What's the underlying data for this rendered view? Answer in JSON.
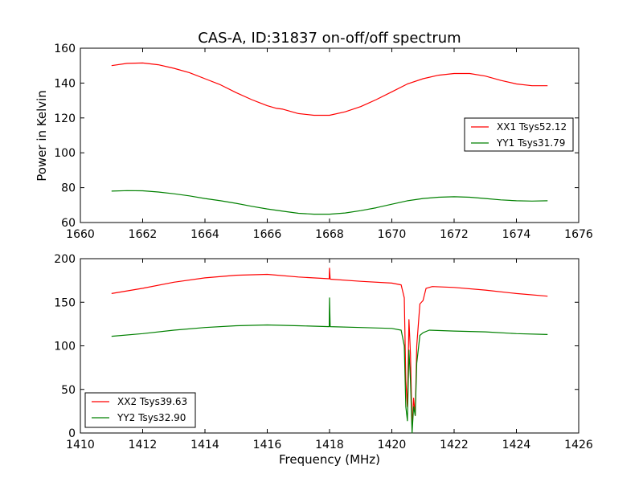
{
  "chart_data": [
    {
      "type": "line",
      "title": "CAS-A, ID:31837 on-off/off spectrum",
      "xlabel": "",
      "ylabel": "Power in Kelvin",
      "xlim": [
        1660,
        1676
      ],
      "ylim": [
        60,
        160
      ],
      "xticks": [
        1660,
        1662,
        1664,
        1666,
        1668,
        1670,
        1672,
        1674,
        1676
      ],
      "yticks": [
        60,
        80,
        100,
        120,
        140,
        160
      ],
      "legend_position": "center-right",
      "series": [
        {
          "name": "XX1 Tsys52.12",
          "color": "#ff0000",
          "points": [
            [
              1661.0,
              150
            ],
            [
              1661.5,
              151.3
            ],
            [
              1662.0,
              151.5
            ],
            [
              1662.5,
              150.5
            ],
            [
              1663.0,
              148.5
            ],
            [
              1663.5,
              146
            ],
            [
              1664.0,
              142.5
            ],
            [
              1664.5,
              139
            ],
            [
              1665.0,
              134.5
            ],
            [
              1665.5,
              130.5
            ],
            [
              1666.0,
              127
            ],
            [
              1666.3,
              125.5
            ],
            [
              1666.5,
              125
            ],
            [
              1667.0,
              122.5
            ],
            [
              1667.5,
              121.5
            ],
            [
              1668.0,
              121.5
            ],
            [
              1668.5,
              123.5
            ],
            [
              1669.0,
              126.5
            ],
            [
              1669.5,
              130.5
            ],
            [
              1670.0,
              135
            ],
            [
              1670.5,
              139.5
            ],
            [
              1671.0,
              142.5
            ],
            [
              1671.5,
              144.5
            ],
            [
              1672.0,
              145.5
            ],
            [
              1672.5,
              145.5
            ],
            [
              1673.0,
              144
            ],
            [
              1673.5,
              141.5
            ],
            [
              1674.0,
              139.5
            ],
            [
              1674.5,
              138.5
            ],
            [
              1675.0,
              138.5
            ]
          ]
        },
        {
          "name": "YY1 Tsys31.79",
          "color": "#008000",
          "points": [
            [
              1661.0,
              78
            ],
            [
              1661.5,
              78.3
            ],
            [
              1662.0,
              78.2
            ],
            [
              1662.5,
              77.5
            ],
            [
              1663.0,
              76.5
            ],
            [
              1663.5,
              75.3
            ],
            [
              1664.0,
              73.8
            ],
            [
              1664.5,
              72.5
            ],
            [
              1665.0,
              71
            ],
            [
              1665.5,
              69.3
            ],
            [
              1666.0,
              67.8
            ],
            [
              1666.5,
              66.5
            ],
            [
              1667.0,
              65.3
            ],
            [
              1667.5,
              64.8
            ],
            [
              1668.0,
              64.8
            ],
            [
              1668.5,
              65.5
            ],
            [
              1669.0,
              66.8
            ],
            [
              1669.5,
              68.5
            ],
            [
              1670.0,
              70.5
            ],
            [
              1670.5,
              72.5
            ],
            [
              1671.0,
              73.8
            ],
            [
              1671.5,
              74.5
            ],
            [
              1672.0,
              74.8
            ],
            [
              1672.5,
              74.5
            ],
            [
              1673.0,
              73.8
            ],
            [
              1673.5,
              73
            ],
            [
              1674.0,
              72.5
            ],
            [
              1674.5,
              72.3
            ],
            [
              1675.0,
              72.5
            ]
          ]
        }
      ]
    },
    {
      "type": "line",
      "title": "",
      "xlabel": "Frequency (MHz)",
      "ylabel": "",
      "xlim": [
        1410,
        1426
      ],
      "ylim": [
        0,
        200
      ],
      "xticks": [
        1410,
        1412,
        1414,
        1416,
        1418,
        1420,
        1422,
        1424,
        1426
      ],
      "yticks": [
        0,
        50,
        100,
        150,
        200
      ],
      "legend_position": "lower-left",
      "series": [
        {
          "name": "XX2 Tsys39.63",
          "color": "#ff0000",
          "points": [
            [
              1411.0,
              160
            ],
            [
              1412.0,
              166
            ],
            [
              1413.0,
              173
            ],
            [
              1414.0,
              178
            ],
            [
              1415.0,
              181
            ],
            [
              1416.0,
              182
            ],
            [
              1417.0,
              179
            ],
            [
              1417.99,
              177
            ],
            [
              1418.0,
              189
            ],
            [
              1418.02,
              176.5
            ],
            [
              1419.0,
              174
            ],
            [
              1420.0,
              172
            ],
            [
              1420.3,
              170
            ],
            [
              1420.4,
              155
            ],
            [
              1420.45,
              60
            ],
            [
              1420.5,
              30
            ],
            [
              1420.55,
              130
            ],
            [
              1420.6,
              90
            ],
            [
              1420.65,
              5
            ],
            [
              1420.7,
              40
            ],
            [
              1420.75,
              20
            ],
            [
              1420.8,
              100
            ],
            [
              1420.9,
              148
            ],
            [
              1421.0,
              152
            ],
            [
              1421.1,
              166
            ],
            [
              1421.3,
              168
            ],
            [
              1422.0,
              167
            ],
            [
              1423.0,
              164
            ],
            [
              1424.0,
              160
            ],
            [
              1425.0,
              157
            ]
          ]
        },
        {
          "name": "YY2 Tsys32.90",
          "color": "#008000",
          "points": [
            [
              1411.0,
              111
            ],
            [
              1412.0,
              114
            ],
            [
              1413.0,
              118
            ],
            [
              1414.0,
              121
            ],
            [
              1415.0,
              123
            ],
            [
              1416.0,
              124
            ],
            [
              1417.0,
              123
            ],
            [
              1417.99,
              122
            ],
            [
              1418.0,
              155
            ],
            [
              1418.02,
              122
            ],
            [
              1419.0,
              121
            ],
            [
              1420.0,
              120
            ],
            [
              1420.3,
              118
            ],
            [
              1420.4,
              100
            ],
            [
              1420.45,
              30
            ],
            [
              1420.5,
              14
            ],
            [
              1420.55,
              95
            ],
            [
              1420.6,
              60
            ],
            [
              1420.65,
              0
            ],
            [
              1420.7,
              30
            ],
            [
              1420.75,
              20
            ],
            [
              1420.8,
              80
            ],
            [
              1420.9,
              112
            ],
            [
              1421.0,
              115
            ],
            [
              1421.2,
              118
            ],
            [
              1422.0,
              117
            ],
            [
              1423.0,
              116
            ],
            [
              1424.0,
              114
            ],
            [
              1425.0,
              113
            ]
          ]
        }
      ]
    }
  ]
}
